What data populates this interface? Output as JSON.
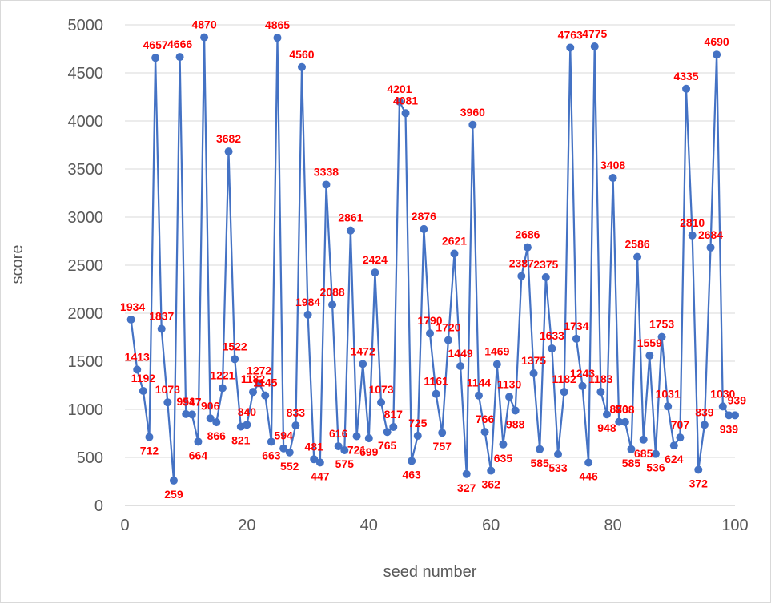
{
  "chart_data": {
    "type": "scatter",
    "title": "",
    "xlabel": "seed number",
    "ylabel": "score",
    "xlim": [
      0,
      100
    ],
    "ylim": [
      0,
      5000
    ],
    "x_ticks": [
      0,
      20,
      40,
      60,
      80,
      100
    ],
    "y_ticks": [
      0,
      500,
      1000,
      1500,
      2000,
      2500,
      3000,
      3500,
      4000,
      4500,
      5000
    ],
    "grid": "horizontal",
    "legend": "none",
    "line_color": "#4472c4",
    "label_color": "#ff0000",
    "series": [
      {
        "x": [
          1,
          2,
          3,
          4,
          5,
          6,
          7,
          8,
          9,
          10,
          11,
          12,
          13,
          14,
          15,
          16,
          17,
          18,
          19,
          20,
          21,
          22,
          23,
          24,
          25,
          26,
          27,
          28,
          29,
          30,
          31,
          32,
          33,
          34,
          35,
          36,
          37,
          38,
          39,
          40,
          41,
          42,
          43,
          44,
          45,
          46,
          47,
          48,
          49,
          50,
          51,
          52,
          53,
          54,
          55,
          56,
          57,
          58,
          59,
          60,
          61,
          62,
          63,
          64,
          65,
          66,
          67,
          68,
          69,
          70,
          71,
          72,
          73,
          74,
          75,
          76,
          77,
          78,
          79,
          80,
          81,
          82,
          83,
          84,
          85,
          86,
          87,
          88,
          89,
          90,
          91,
          92,
          93,
          94,
          95,
          96,
          97,
          98,
          99,
          100
        ],
        "y": [
          1934,
          1413,
          1192,
          712,
          4657,
          1837,
          1073,
          259,
          4666,
          951,
          947,
          664,
          4870,
          906,
          866,
          1221,
          3682,
          1522,
          821,
          840,
          1182,
          1272,
          1145,
          663,
          4865,
          594,
          552,
          833,
          4560,
          1984,
          481,
          447,
          3338,
          2088,
          616,
          575,
          2861,
          721,
          1472,
          699,
          2424,
          1073,
          765,
          817,
          4201,
          4081,
          463,
          725,
          2876,
          1790,
          1161,
          757,
          1720,
          2621,
          1449,
          327,
          3960,
          1144,
          766,
          362,
          1469,
          635,
          1130,
          988,
          2387,
          2686,
          1375,
          585,
          2375,
          1633,
          533,
          1182,
          4763,
          1734,
          1243,
          446,
          4775,
          1183,
          948,
          3408,
          870,
          868,
          585,
          2586,
          685,
          1559,
          536,
          1753,
          1031,
          624,
          707,
          4335,
          2810,
          372,
          839,
          2684,
          4690,
          1030,
          939,
          939
        ]
      }
    ]
  }
}
